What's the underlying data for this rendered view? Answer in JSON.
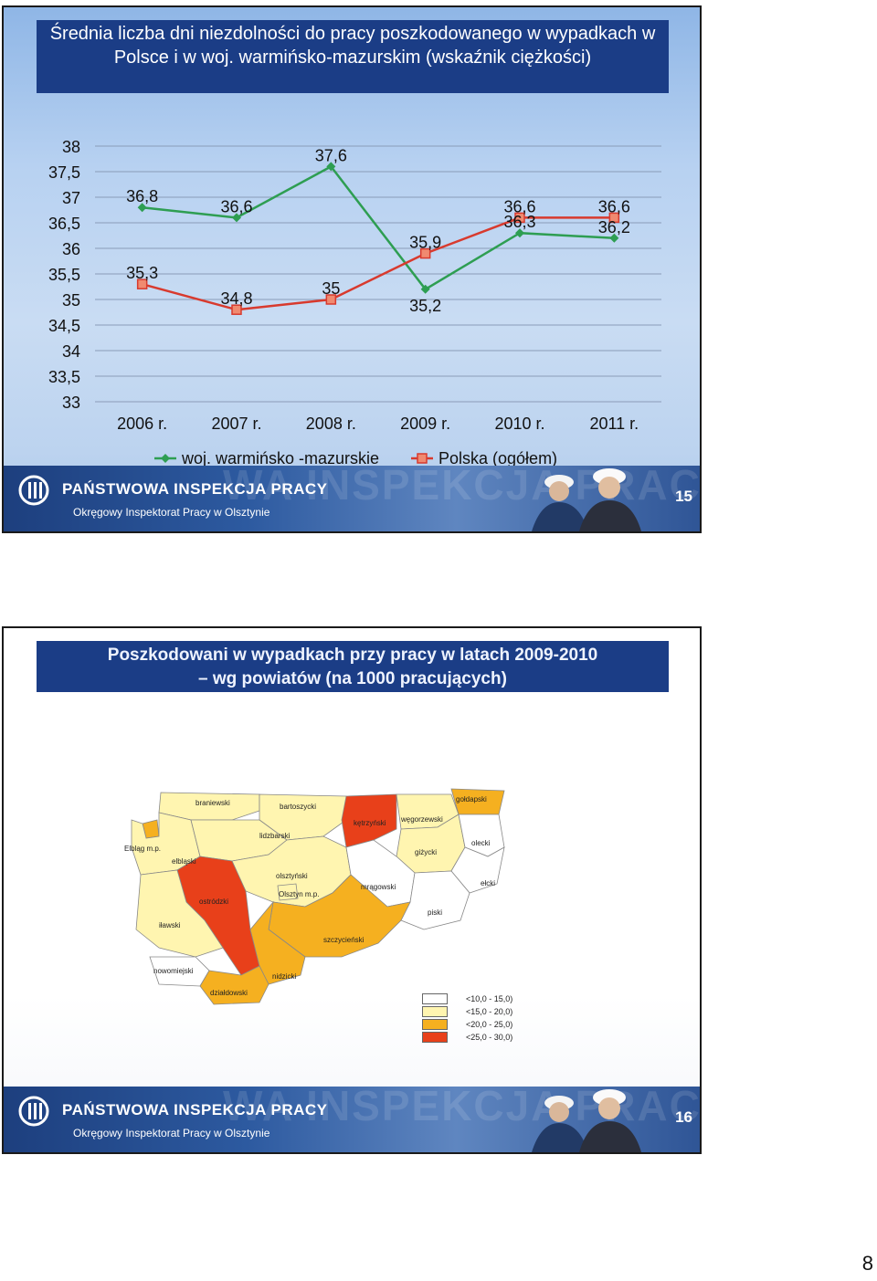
{
  "slide1": {
    "title": "Średnia liczba dni niezdolności do pracy poszkodowanego w wypadkach w Polsce i w woj. warmińsko-mazurskim (wskaźnik ciężkości)",
    "footer": {
      "brand": "PAŃSTWOWA INSPEKCJA PRACY",
      "office": "Okręgowy Inspektorat Pracy w Olsztynie",
      "watermark": "WA INSPEKCJA PRACY",
      "page": "15"
    }
  },
  "chart_data": {
    "type": "line",
    "categories": [
      "2006 r.",
      "2007 r.",
      "2008 r.",
      "2009 r.",
      "2010 r.",
      "2011 r."
    ],
    "series": [
      {
        "name": "woj. warmińsko -mazurskie",
        "values": [
          36.8,
          36.6,
          37.6,
          35.2,
          36.3,
          36.2
        ],
        "labels": [
          "36,8",
          "36,6",
          "37,6",
          "35,2",
          "36,3",
          "36,2"
        ],
        "color": "#2e9e52"
      },
      {
        "name": "Polska (ogółem)",
        "values": [
          35.3,
          34.8,
          35.0,
          35.9,
          36.6,
          36.6
        ],
        "labels": [
          "35,3",
          "34,8",
          "35",
          "35,9",
          "36,6",
          "36,6"
        ],
        "color": "#d83a2e"
      }
    ],
    "ylim": [
      33,
      38
    ],
    "yticks": [
      "38",
      "37,5",
      "37",
      "36,5",
      "36",
      "35,5",
      "35",
      "34,5",
      "34",
      "33,5",
      "33"
    ],
    "grid": true,
    "legend": "bottom"
  },
  "slide2": {
    "title_line1": "Poszkodowani w wypadkach przy pracy w latach 2009-2010",
    "title_line2": "– wg powiatów (na 1000 pracujących)",
    "counties": [
      "braniewski",
      "bartoszycki",
      "gołdapski",
      "kętrzyński",
      "węgorzewski",
      "lidzbarski",
      "Elbląg m.p.",
      "elbląski",
      "olsztyński",
      "giżycki",
      "olecki",
      "ostródzki",
      "Olsztyn m.p.",
      "mrągowski",
      "ełcki",
      "piski",
      "iławski",
      "szczycieński",
      "nowomiejski",
      "nidzicki",
      "działdowski"
    ],
    "legend": [
      {
        "label": "<10,0 - 15,0)",
        "color": "#ffffff"
      },
      {
        "label": "<15,0 - 20,0)",
        "color": "#fff5b0"
      },
      {
        "label": "<20,0 - 25,0)",
        "color": "#f5b020"
      },
      {
        "label": "<25,0 - 30,0)",
        "color": "#e8401a"
      }
    ],
    "footer": {
      "brand": "PAŃSTWOWA INSPEKCJA PRACY",
      "office": "Okręgowy Inspektorat Pracy w Olsztynie",
      "watermark": "WA INSPEKCJA PRACY",
      "page": "16"
    }
  },
  "document_page": "8"
}
